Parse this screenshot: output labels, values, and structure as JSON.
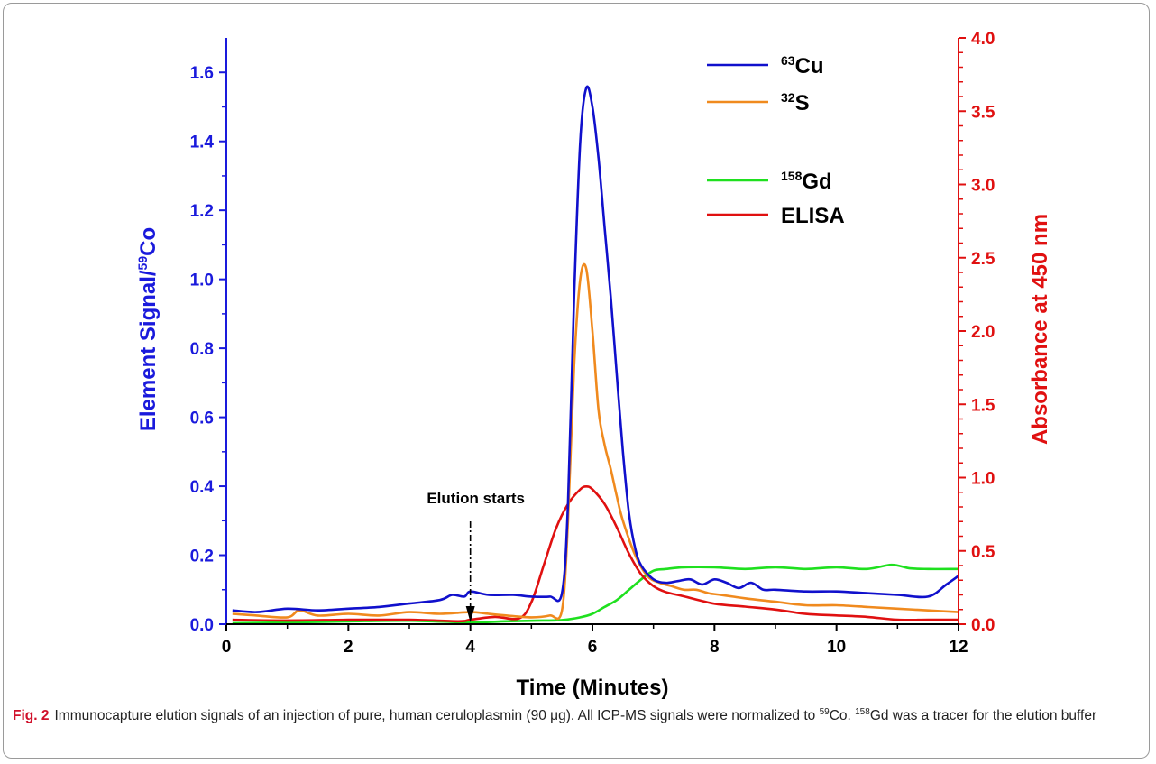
{
  "chart_data": {
    "type": "line",
    "xlabel": "Time (Minutes)",
    "ylabel_left": "Element Signal/",
    "ylabel_left_sup": "59",
    "ylabel_left_suffix": "Co",
    "ylabel_right": "Absorbance at 450 nm",
    "xlim": [
      0,
      12
    ],
    "ylim_left": [
      0,
      1.7
    ],
    "ylim_right": [
      0,
      4.0
    ],
    "x_ticks": [
      "0",
      "2",
      "4",
      "6",
      "8",
      "10",
      "12"
    ],
    "y_left_ticks": [
      "0.0",
      "0.2",
      "0.4",
      "0.6",
      "0.8",
      "1.0",
      "1.2",
      "1.4",
      "1.6"
    ],
    "y_right_ticks": [
      "0.0",
      "0.5",
      "1.0",
      "1.5",
      "2.0",
      "2.5",
      "3.0",
      "3.5",
      "4.0"
    ],
    "colors": {
      "left_axis": "#1a1adc",
      "right_axis": "#e01010"
    },
    "legend_placement": "top-right",
    "series": [
      {
        "name_sup": "63",
        "name_main": "Cu",
        "axis": "left",
        "color": "#1010cc",
        "x": [
          0.1,
          0.5,
          1.0,
          1.5,
          2.0,
          2.5,
          3.0,
          3.5,
          3.7,
          3.9,
          4.0,
          4.3,
          4.7,
          5.0,
          5.3,
          5.5,
          5.6,
          5.7,
          5.8,
          5.9,
          6.0,
          6.1,
          6.2,
          6.3,
          6.4,
          6.5,
          6.6,
          6.7,
          6.8,
          7.0,
          7.2,
          7.4,
          7.6,
          7.8,
          8.0,
          8.2,
          8.4,
          8.6,
          8.8,
          9.0,
          9.5,
          10.0,
          10.5,
          11.0,
          11.5,
          11.8,
          12.0
        ],
        "y": [
          0.04,
          0.035,
          0.045,
          0.04,
          0.045,
          0.05,
          0.06,
          0.07,
          0.085,
          0.08,
          0.095,
          0.085,
          0.085,
          0.08,
          0.08,
          0.09,
          0.35,
          0.95,
          1.4,
          1.555,
          1.5,
          1.35,
          1.15,
          0.95,
          0.72,
          0.5,
          0.32,
          0.22,
          0.17,
          0.13,
          0.12,
          0.125,
          0.13,
          0.115,
          0.13,
          0.12,
          0.105,
          0.12,
          0.1,
          0.1,
          0.095,
          0.095,
          0.09,
          0.085,
          0.08,
          0.115,
          0.14
        ]
      },
      {
        "name_sup": "32",
        "name_main": "S",
        "axis": "left",
        "color": "#f08a1e",
        "x": [
          0.1,
          0.5,
          1.0,
          1.2,
          1.5,
          2.0,
          2.5,
          3.0,
          3.5,
          4.0,
          4.3,
          4.6,
          5.0,
          5.3,
          5.5,
          5.6,
          5.7,
          5.8,
          5.9,
          6.0,
          6.1,
          6.2,
          6.3,
          6.4,
          6.5,
          6.7,
          6.9,
          7.1,
          7.3,
          7.5,
          7.7,
          7.9,
          8.1,
          8.3,
          8.5,
          9.0,
          9.5,
          10.0,
          10.5,
          11.0,
          11.5,
          12.0
        ],
        "y": [
          0.03,
          0.025,
          0.02,
          0.04,
          0.025,
          0.03,
          0.025,
          0.035,
          0.03,
          0.035,
          0.03,
          0.025,
          0.02,
          0.025,
          0.04,
          0.3,
          0.75,
          1.0,
          1.03,
          0.85,
          0.62,
          0.52,
          0.45,
          0.37,
          0.3,
          0.2,
          0.14,
          0.12,
          0.11,
          0.1,
          0.1,
          0.09,
          0.085,
          0.08,
          0.075,
          0.065,
          0.055,
          0.055,
          0.05,
          0.045,
          0.04,
          0.035
        ]
      },
      {
        "name_sup": "158",
        "name_main": "Gd",
        "axis": "left",
        "color": "#1fe01f",
        "x": [
          0.1,
          1.0,
          2.0,
          3.0,
          4.0,
          4.5,
          5.0,
          5.5,
          5.8,
          6.0,
          6.2,
          6.4,
          6.6,
          6.8,
          7.0,
          7.2,
          7.5,
          8.0,
          8.5,
          9.0,
          9.5,
          10.0,
          10.5,
          10.9,
          11.2,
          11.5,
          12.0
        ],
        "y": [
          0.003,
          0.005,
          0.008,
          0.01,
          0.005,
          0.008,
          0.01,
          0.012,
          0.02,
          0.03,
          0.05,
          0.07,
          0.1,
          0.13,
          0.155,
          0.16,
          0.165,
          0.165,
          0.16,
          0.165,
          0.16,
          0.165,
          0.16,
          0.172,
          0.162,
          0.16,
          0.16
        ]
      },
      {
        "name_main": "ELISA",
        "axis": "right",
        "color": "#e01010",
        "x": [
          0.1,
          1.0,
          2.0,
          3.0,
          3.8,
          4.0,
          4.4,
          4.8,
          5.0,
          5.2,
          5.4,
          5.6,
          5.8,
          5.9,
          6.0,
          6.2,
          6.4,
          6.6,
          6.8,
          7.0,
          7.2,
          7.5,
          8.0,
          8.5,
          9.0,
          9.5,
          10.0,
          10.5,
          11.0,
          11.5,
          12.0
        ],
        "y": [
          0.03,
          0.025,
          0.03,
          0.03,
          0.02,
          0.03,
          0.05,
          0.04,
          0.15,
          0.4,
          0.65,
          0.82,
          0.92,
          0.94,
          0.92,
          0.82,
          0.66,
          0.48,
          0.34,
          0.26,
          0.22,
          0.19,
          0.14,
          0.12,
          0.1,
          0.07,
          0.06,
          0.05,
          0.03,
          0.03,
          0.03
        ]
      }
    ],
    "annotation": {
      "text": "Elution starts",
      "x": 4
    }
  },
  "caption": {
    "fig_label": "Fig. 2",
    "t1": "Immunocapture elution signals of an injection of pure, human ceruloplasmin (90 μg). All ICP-MS signals were normalized to ",
    "sup1": "59",
    "t2": "Co. ",
    "sup2": "158",
    "t3": "Gd was a tracer for the elution buffer"
  }
}
